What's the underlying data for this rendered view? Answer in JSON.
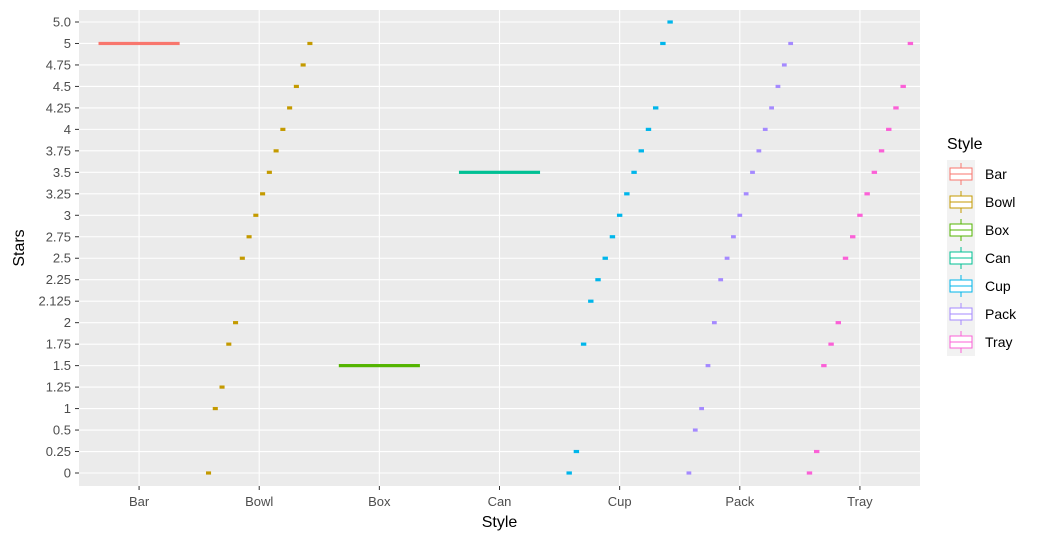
{
  "chart_data": {
    "type": "boxplot",
    "xlabel": "Style",
    "ylabel": "Stars",
    "categories": [
      "Bar",
      "Bowl",
      "Box",
      "Can",
      "Cup",
      "Pack",
      "Tray"
    ],
    "y_ticks": [
      "0",
      "0.25",
      "0.5",
      "1",
      "1.25",
      "1.5",
      "1.75",
      "2",
      "2.125",
      "2.25",
      "2.5",
      "2.75",
      "3",
      "3.25",
      "3.5",
      "3.75",
      "4",
      "4.25",
      "4.5",
      "4.75",
      "5",
      "5.0"
    ],
    "y_axis_note": "discrete (categorical) y axis",
    "colors": {
      "Bar": "#F8766D",
      "Bowl": "#C49A00",
      "Box": "#53B400",
      "Can": "#00C094",
      "Cup": "#00B6EB",
      "Pack": "#A58AFF",
      "Tray": "#FB61D7"
    },
    "series": [
      {
        "name": "Bar",
        "values": [
          "5"
        ]
      },
      {
        "name": "Bowl",
        "values": [
          "0",
          "1",
          "1.25",
          "1.75",
          "2",
          "2.5",
          "2.75",
          "3",
          "3.25",
          "3.5",
          "3.75",
          "4",
          "4.25",
          "4.5",
          "4.75",
          "5"
        ]
      },
      {
        "name": "Box",
        "values": [
          "1.5"
        ]
      },
      {
        "name": "Can",
        "values": [
          "3.5"
        ]
      },
      {
        "name": "Cup",
        "values": [
          "0",
          "0.25",
          "1.75",
          "2.125",
          "2.25",
          "2.5",
          "2.75",
          "3",
          "3.25",
          "3.5",
          "3.75",
          "4",
          "4.25",
          "5",
          "5.0"
        ]
      },
      {
        "name": "Pack",
        "values": [
          "0",
          "0.5",
          "1",
          "1.5",
          "2",
          "2.25",
          "2.5",
          "2.75",
          "3",
          "3.25",
          "3.5",
          "3.75",
          "4",
          "4.25",
          "4.5",
          "4.75",
          "5"
        ]
      },
      {
        "name": "Tray",
        "values": [
          "0",
          "0.25",
          "1.5",
          "1.75",
          "2",
          "2.5",
          "2.75",
          "3",
          "3.25",
          "3.5",
          "3.75",
          "4",
          "4.25",
          "4.5",
          "5"
        ]
      }
    ],
    "legend": {
      "title": "Style",
      "position": "right",
      "entries": [
        "Bar",
        "Bowl",
        "Box",
        "Can",
        "Cup",
        "Pack",
        "Tray"
      ]
    },
    "grid": true,
    "background": "#EBEBEB"
  }
}
